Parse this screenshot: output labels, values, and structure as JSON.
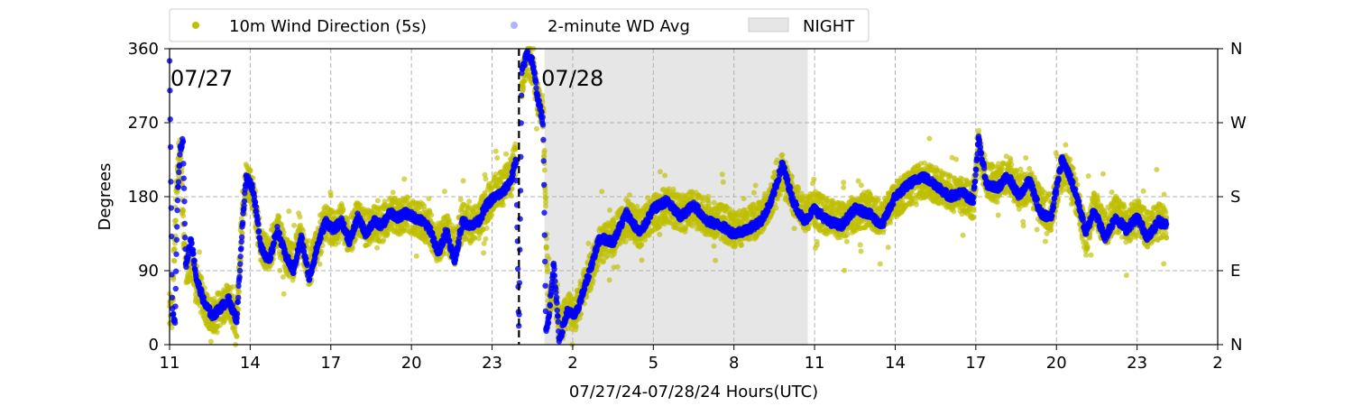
{
  "chart_data": {
    "type": "scatter",
    "xlabel": "07/27/24-07/28/24  Hours(UTC)",
    "ylabel": "Degrees",
    "x_ticks": [
      "11",
      "14",
      "17",
      "20",
      "23",
      "2",
      "5",
      "8",
      "11",
      "14",
      "17",
      "20",
      "23",
      "2"
    ],
    "x_tick_hours": [
      11,
      14,
      17,
      20,
      23,
      26,
      29,
      32,
      35,
      38,
      41,
      44,
      47,
      50
    ],
    "xlim": [
      11,
      50
    ],
    "ylim": [
      0,
      360
    ],
    "y_ticks": [
      0,
      90,
      180,
      270,
      360
    ],
    "y2_ticks": [
      "N",
      "E",
      "S",
      "W",
      "N"
    ],
    "grid": true,
    "legend": {
      "placement": "top",
      "entries": [
        {
          "label": "10m Wind Direction (5s)",
          "color": "#bfbf00"
        },
        {
          "label": "2-minute WD Avg",
          "color": "#0000ff"
        },
        {
          "label": "NIGHT",
          "color": "#e6e6e6"
        }
      ]
    },
    "day_labels": [
      {
        "text": "07/27",
        "hour": 11.0
      },
      {
        "text": "07/28",
        "hour": 24.8
      }
    ],
    "midnight_hour": 24.0,
    "night_shading": [
      24.95,
      34.75
    ],
    "series": [
      {
        "name": "10m Wind Direction (5s)",
        "color": "#bfbf00",
        "spread": 22,
        "x": [
          11.0,
          11.1,
          11.25,
          11.4,
          11.5,
          11.6,
          11.8,
          12.0,
          12.3,
          12.6,
          12.9,
          13.2,
          13.5,
          13.7,
          13.85,
          14.1,
          14.4,
          14.7,
          15.0,
          15.3,
          15.6,
          15.9,
          16.2,
          16.5,
          16.8,
          17.1,
          17.4,
          17.7,
          18.0,
          18.3,
          18.6,
          18.9,
          19.2,
          19.5,
          19.8,
          20.1,
          20.4,
          20.7,
          21.0,
          21.3,
          21.6,
          21.9,
          22.2,
          22.5,
          22.8,
          23.1,
          23.4,
          23.7,
          23.9
        ],
        "y": [
          40,
          30,
          190,
          245,
          150,
          95,
          100,
          75,
          50,
          35,
          45,
          55,
          30,
          150,
          200,
          185,
          120,
          110,
          140,
          110,
          100,
          130,
          90,
          120,
          150,
          140,
          150,
          130,
          155,
          140,
          150,
          145,
          160,
          155,
          160,
          155,
          150,
          140,
          120,
          140,
          115,
          150,
          145,
          150,
          170,
          185,
          190,
          205,
          230
        ]
      },
      {
        "name": "10m Wind Direction (5s) — after midnight",
        "color": "#bfbf00",
        "spread": 22,
        "x": [
          24.1,
          24.3,
          24.5,
          24.7,
          24.9,
          25.1,
          25.3,
          25.5,
          25.8,
          26.1,
          26.5,
          27.0,
          27.5,
          28.0,
          28.5,
          29.0,
          29.5,
          30.0,
          30.5,
          31.0,
          31.5,
          32.0,
          32.5,
          33.0,
          33.4,
          33.8,
          34.2,
          34.6,
          35.0,
          35.5,
          36.0,
          36.5,
          37.0,
          37.5,
          38.0,
          38.5,
          39.0,
          39.5,
          40.0,
          40.5,
          40.9,
          41.1,
          41.4,
          41.8,
          42.2,
          42.6,
          43.0,
          43.4,
          43.8,
          44.2,
          44.5,
          44.8,
          45.1,
          45.4,
          45.8,
          46.2,
          46.6,
          47.0,
          47.4,
          47.8,
          48.1
        ],
        "y": [
          320,
          350,
          340,
          300,
          280,
          40,
          80,
          20,
          40,
          40,
          75,
          120,
          130,
          155,
          140,
          160,
          170,
          160,
          165,
          155,
          150,
          140,
          145,
          155,
          180,
          210,
          180,
          160,
          165,
          155,
          150,
          160,
          165,
          155,
          175,
          190,
          200,
          195,
          185,
          180,
          175,
          240,
          200,
          195,
          210,
          185,
          195,
          170,
          160,
          210,
          205,
          175,
          130,
          170,
          140,
          160,
          145,
          155,
          140,
          150,
          145
        ]
      }
    ],
    "avg_series": {
      "name": "2-minute WD Avg",
      "color": "#0000ff",
      "x": [
        11.0,
        11.1,
        11.2,
        11.3,
        11.4,
        11.5,
        11.6,
        11.8,
        12.0,
        12.3,
        12.6,
        12.9,
        13.2,
        13.5,
        13.7,
        13.85,
        14.1,
        14.4,
        14.7,
        15.0,
        15.3,
        15.6,
        15.9,
        16.2,
        16.5,
        16.8,
        17.1,
        17.4,
        17.7,
        18.0,
        18.3,
        18.6,
        18.9,
        19.2,
        19.5,
        19.8,
        20.1,
        20.4,
        20.7,
        21.0,
        21.3,
        21.6,
        21.9,
        22.2,
        22.5,
        22.8,
        23.1,
        23.4,
        23.7,
        23.9,
        24.0,
        24.1,
        24.3,
        24.5,
        24.7,
        24.9,
        25.0,
        25.1,
        25.3,
        25.5,
        25.8,
        26.1,
        26.5,
        27.0,
        27.5,
        28.0,
        28.5,
        29.0,
        29.5,
        30.0,
        30.5,
        31.0,
        31.5,
        32.0,
        32.5,
        33.0,
        33.4,
        33.8,
        34.2,
        34.6,
        35.0,
        35.5,
        36.0,
        36.5,
        37.0,
        37.5,
        38.0,
        38.5,
        39.0,
        39.5,
        40.0,
        40.5,
        40.9,
        41.1,
        41.4,
        41.8,
        42.2,
        42.6,
        43.0,
        43.4,
        43.8,
        44.2,
        44.5,
        44.8,
        45.1,
        45.4,
        45.8,
        46.2,
        46.6,
        47.0,
        47.4,
        47.8,
        48.1
      ],
      "y": [
        350,
        40,
        25,
        180,
        240,
        250,
        95,
        130,
        80,
        50,
        35,
        45,
        55,
        30,
        140,
        205,
        190,
        120,
        100,
        140,
        110,
        90,
        130,
        80,
        120,
        150,
        140,
        150,
        125,
        155,
        135,
        150,
        145,
        160,
        155,
        160,
        155,
        150,
        140,
        110,
        140,
        100,
        150,
        145,
        150,
        170,
        180,
        185,
        200,
        225,
        10,
        330,
        355,
        345,
        300,
        270,
        20,
        30,
        100,
        5,
        40,
        35,
        75,
        130,
        125,
        160,
        135,
        165,
        175,
        155,
        170,
        150,
        145,
        135,
        140,
        150,
        175,
        220,
        175,
        150,
        165,
        150,
        145,
        165,
        160,
        145,
        180,
        195,
        205,
        195,
        180,
        185,
        175,
        250,
        195,
        190,
        205,
        180,
        200,
        160,
        155,
        225,
        205,
        175,
        135,
        165,
        130,
        155,
        140,
        155,
        130,
        150,
        145
      ]
    }
  }
}
